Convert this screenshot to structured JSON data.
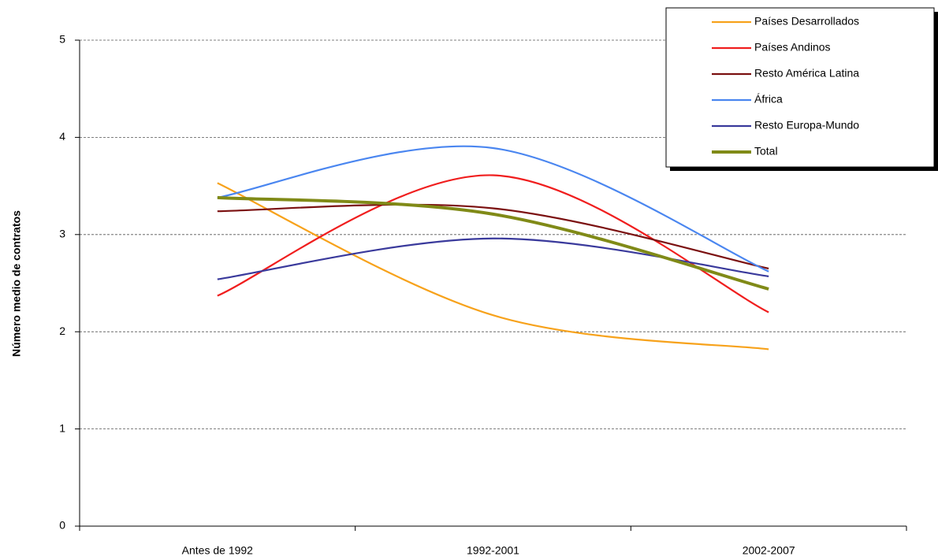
{
  "chart_data": {
    "type": "line",
    "smooth": true,
    "y_label": "Número medio de contratos",
    "categories": [
      "Antes de 1992",
      "1992-2001",
      "2002-2007"
    ],
    "ylim": [
      0,
      5
    ],
    "yticks": [
      0,
      1,
      2,
      3,
      4,
      5
    ],
    "grid": true,
    "legend": "top-right",
    "series": [
      {
        "name": "Países Desarrollados",
        "color": "#f7a21b",
        "values": [
          3.53,
          2.17,
          1.82
        ]
      },
      {
        "name": "Países Andinos",
        "color": "#f01e1e",
        "values": [
          2.37,
          3.61,
          2.2
        ]
      },
      {
        "name": "Resto América Latina",
        "color": "#7b1010",
        "values": [
          3.24,
          3.27,
          2.65
        ]
      },
      {
        "name": "África",
        "color": "#4a86f0",
        "values": [
          3.38,
          3.89,
          2.62
        ]
      },
      {
        "name": "Resto Europa-Mundo",
        "color": "#3a3a9c",
        "values": [
          2.54,
          2.96,
          2.57
        ]
      },
      {
        "name": "Total",
        "color": "#808a17",
        "values": [
          3.38,
          3.21,
          2.44
        ]
      }
    ]
  }
}
